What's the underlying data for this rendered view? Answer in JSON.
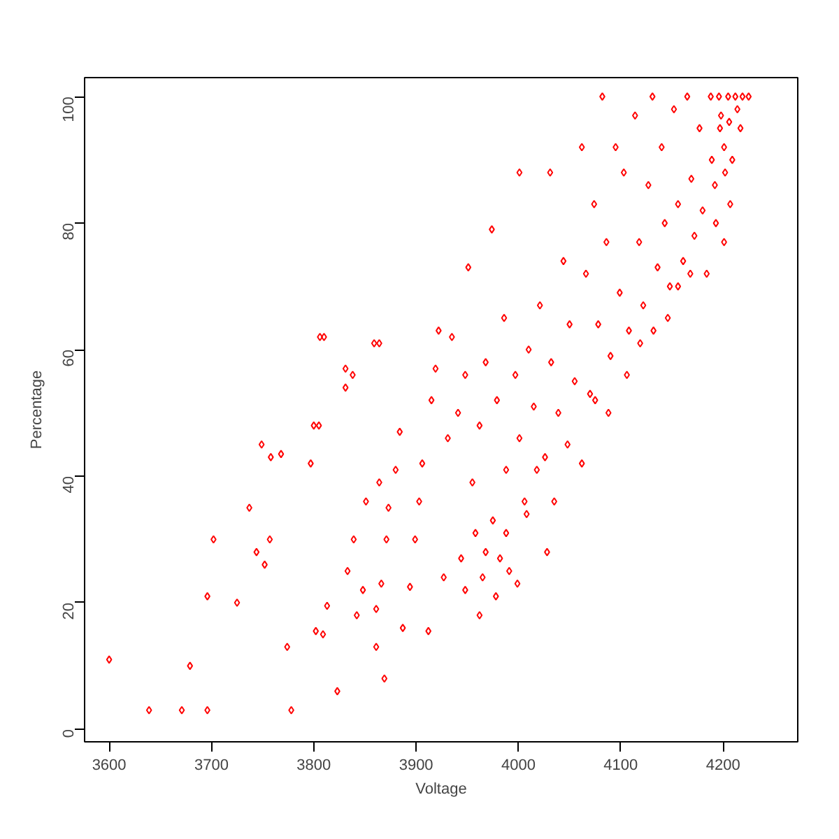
{
  "chart_data": {
    "type": "scatter",
    "xlabel": "Voltage",
    "ylabel": "Percentage",
    "xlim": [
      3576,
      4273
    ],
    "ylim": [
      -2,
      103
    ],
    "xticks": [
      3600,
      3700,
      3800,
      3900,
      4000,
      4100,
      4200
    ],
    "yticks": [
      0,
      20,
      40,
      60,
      80,
      100
    ],
    "grid": false,
    "marker": "diamond",
    "series": [
      {
        "color": "#ff0000",
        "x": [
          3600,
          3639,
          3671,
          3679,
          3696,
          3696,
          3702,
          3725,
          3737,
          3744,
          3749,
          3752,
          3757,
          3758,
          3768,
          3774,
          3778,
          3797,
          3800,
          3805,
          3802,
          3806,
          3810,
          3809,
          3813,
          3823,
          3831,
          3831,
          3833,
          3838,
          3839,
          3842,
          3848,
          3851,
          3859,
          3861,
          3861,
          3864,
          3864,
          3866,
          3869,
          3871,
          3873,
          3880,
          3884,
          3887,
          3894,
          3899,
          3903,
          3906,
          3912,
          3915,
          3919,
          3922,
          3927,
          3931,
          3935,
          3941,
          3944,
          3948,
          3951,
          3955,
          3958,
          3962,
          3965,
          3968,
          3974,
          3975,
          3979,
          3982,
          3986,
          3988,
          3991,
          3997,
          4001,
          4001,
          4006,
          4010,
          4015,
          4021,
          4026,
          4031,
          4032,
          4039,
          4044,
          4050,
          4055,
          4062,
          4066,
          4070,
          4074,
          4078,
          4082,
          4086,
          4090,
          4095,
          4099,
          4103,
          4108,
          4114,
          4118,
          4122,
          4127,
          4131,
          4136,
          4140,
          4143,
          4148,
          4152,
          4156,
          4161,
          4165,
          4169,
          4172,
          4177,
          4180,
          4184,
          4188,
          4189,
          4192,
          4193,
          4196,
          4197,
          4198,
          4201,
          4202,
          4205,
          4206,
          4209,
          4212,
          4214,
          4217,
          4219,
          4225,
          4207,
          4201,
          3948,
          3962,
          3968,
          3978,
          3988,
          3999,
          4008,
          4018,
          4028,
          4035,
          4048,
          4062,
          4075,
          4088,
          4106,
          4119,
          4132,
          4146,
          4156,
          4168
        ],
        "values": [
          11,
          3,
          3,
          10,
          3,
          21,
          30,
          20,
          35,
          28,
          45,
          26,
          30,
          43,
          43.5,
          13,
          3,
          42,
          48,
          48,
          15.5,
          62,
          62,
          15,
          19.5,
          6,
          54,
          57,
          25,
          56,
          30,
          18,
          22,
          36,
          61,
          13,
          19,
          61,
          39,
          23,
          8,
          30,
          35,
          41,
          47,
          16,
          22.5,
          30,
          36,
          42,
          15.5,
          52,
          57,
          63,
          24,
          46,
          62,
          50,
          27,
          56,
          73,
          39,
          31,
          48,
          24,
          58,
          79,
          33,
          52,
          27,
          65,
          41,
          25,
          56,
          88,
          46,
          36,
          60,
          51,
          67,
          43,
          88,
          58,
          50,
          74,
          64,
          55,
          92,
          72,
          53,
          83,
          64,
          100,
          77,
          59,
          92,
          69,
          88,
          63,
          97,
          77,
          67,
          86,
          100,
          73,
          92,
          80,
          70,
          98,
          83,
          74,
          100,
          87,
          78,
          95,
          82,
          72,
          100,
          90,
          86,
          80,
          100,
          95,
          97,
          92,
          88,
          100,
          96,
          90,
          100,
          98,
          95,
          100,
          100,
          83,
          77,
          22,
          18,
          28,
          21,
          31,
          23,
          34,
          41,
          28,
          36,
          45,
          42,
          52,
          50,
          56,
          61,
          63,
          65,
          70,
          72
        ]
      }
    ]
  }
}
